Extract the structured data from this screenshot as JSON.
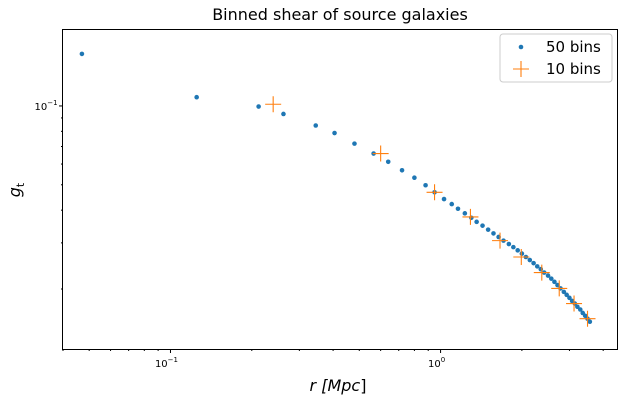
{
  "chart_data": {
    "type": "scatter",
    "title": "Binned shear of source galaxies",
    "xlabel": "r [Mpc]",
    "ylabel": "g_t",
    "xscale": "log",
    "yscale": "log",
    "xlim": [
      0.04,
      4.5
    ],
    "ylim": [
      0.0118,
      0.195
    ],
    "grid": false,
    "legend_position": "top-right",
    "x_tick_labels": [
      {
        "value": 0.1,
        "base": "10",
        "exp": "−1"
      },
      {
        "value": 1,
        "base": "10",
        "exp": "0"
      }
    ],
    "y_tick_labels": [
      {
        "value": 0.1,
        "base": "10",
        "exp": "−1"
      }
    ],
    "series": [
      {
        "name": "50 bins",
        "marker": "dot",
        "color": "#1f77b4",
        "x": [
          0.047,
          0.125,
          0.212,
          0.262,
          0.345,
          0.405,
          0.48,
          0.565,
          0.64,
          0.72,
          0.8,
          0.88,
          0.95,
          1.03,
          1.1,
          1.16,
          1.23,
          1.3,
          1.36,
          1.43,
          1.5,
          1.57,
          1.64,
          1.71,
          1.79,
          1.86,
          1.93,
          2.0,
          2.07,
          2.14,
          2.21,
          2.28,
          2.35,
          2.42,
          2.5,
          2.57,
          2.64,
          2.71,
          2.78,
          2.86,
          2.93,
          3.0,
          3.07,
          3.14,
          3.21,
          3.29,
          3.36,
          3.43,
          3.5,
          3.57
        ],
        "y": [
          0.158,
          0.108,
          0.0995,
          0.0932,
          0.0842,
          0.0788,
          0.0718,
          0.0658,
          0.0612,
          0.0568,
          0.0532,
          0.0498,
          0.0468,
          0.0441,
          0.0422,
          0.0405,
          0.0389,
          0.0374,
          0.0361,
          0.0349,
          0.0337,
          0.0326,
          0.0316,
          0.0306,
          0.0297,
          0.0289,
          0.0281,
          0.0273,
          0.0265,
          0.0258,
          0.0251,
          0.0244,
          0.0238,
          0.0231,
          0.0225,
          0.0219,
          0.0213,
          0.0207,
          0.0201,
          0.0195,
          0.019,
          0.0185,
          0.018,
          0.0176,
          0.0171,
          0.0167,
          0.0162,
          0.0158,
          0.0154,
          0.015
        ]
      },
      {
        "name": "10 bins",
        "marker": "plus",
        "color": "#ff7f0e",
        "x": [
          0.24,
          0.6,
          0.95,
          1.29,
          1.66,
          1.99,
          2.37,
          2.75,
          3.12,
          3.5
        ],
        "y": [
          0.1015,
          0.0658,
          0.0468,
          0.0377,
          0.0306,
          0.0265,
          0.0231,
          0.0201,
          0.0176,
          0.0154
        ]
      }
    ]
  }
}
